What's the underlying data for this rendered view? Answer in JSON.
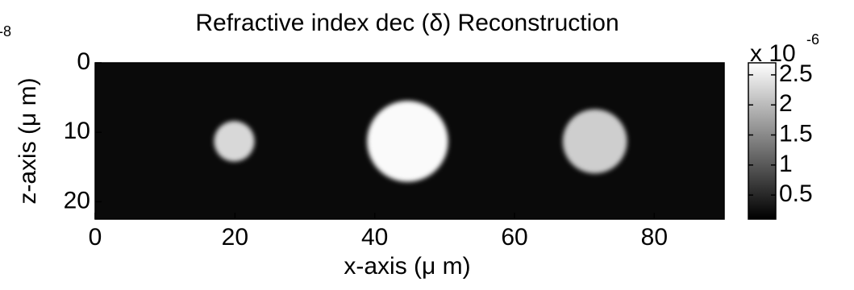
{
  "chart_data": {
    "type": "heatmap",
    "title": "Refractive index dec (δ) Reconstruction",
    "x_label": "x-axis (μ m)",
    "y_label": "z-axis (μ m)",
    "corner_annotation": "-8",
    "colorbar_label": "x 10",
    "colorbar_exponent": "-6",
    "xlim": [
      0,
      90
    ],
    "xticks": [
      0,
      20,
      40,
      60,
      80
    ],
    "ylim": [
      22.5,
      0
    ],
    "yticks": [
      0,
      10,
      20
    ],
    "clim": [
      0.1,
      2.7
    ],
    "cticks": [
      0.5,
      1,
      1.5,
      2,
      2.5
    ],
    "colormap": "gray",
    "background_value": 0.2,
    "objects": {
      "x": [
        19.9,
        44.7,
        71.5
      ],
      "z": [
        11.3,
        11.3,
        11.3
      ],
      "radius": [
        2.9,
        5.8,
        4.6
      ],
      "values": [
        2.3,
        2.65,
        2.2
      ]
    }
  }
}
